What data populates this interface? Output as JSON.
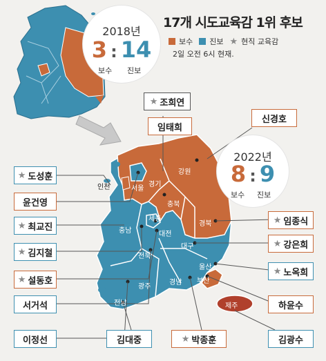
{
  "title": "17개 시도교육감 1위 후보",
  "legend": {
    "conservative": "보수",
    "progressive": "진보",
    "incumbent": "현직 교육감",
    "colors": {
      "conservative": "#c86a3a",
      "progressive": "#3d8fb0",
      "star": "#8a8a8a"
    }
  },
  "note": "2일 오전 6시 현재.",
  "score_2018": {
    "year": "2018년",
    "conservative": "3",
    "sep": ":",
    "progressive": "14",
    "label_conservative": "보수",
    "label_progressive": "진보"
  },
  "score_2022": {
    "year": "2022년",
    "conservative": "8",
    "sep": ":",
    "progressive": "9",
    "label_conservative": "보수",
    "label_progressive": "진보"
  },
  "regions": {
    "incheon": "인천",
    "seoul": "서울",
    "gyeonggi": "경기",
    "gangwon": "강원",
    "chungbuk": "충북",
    "chungnam": "충남",
    "sejong": "세종",
    "daejeon": "대전",
    "gyeongbuk": "경북",
    "daegu": "대구",
    "jeonbuk": "전북",
    "ulsan": "울산",
    "gyeongnam": "경남",
    "busan": "부산",
    "gwangju": "광주",
    "jeonnam": "전남",
    "jeju": "제주"
  },
  "star": "★",
  "candidates": {
    "jo_heeyeon": "조희연",
    "im_taehee": "임태희",
    "shin_kyungho": "신경호",
    "do_sunghun": "도성훈",
    "yoon_gunyoung": "윤건영",
    "choi_gyojin": "최교진",
    "kim_jicheol": "김지철",
    "seol_dongho": "설동호",
    "seo_geoseok": "서거석",
    "lee_jungsun": "이정선",
    "kim_daejung": "김대중",
    "park_jonghoon": "박종훈",
    "kim_gwangsu": "김광수",
    "ha_yunsu": "하윤수",
    "noh_okhee": "노옥희",
    "kang_eunhee": "강은희",
    "im_jongsik": "임종식"
  }
}
